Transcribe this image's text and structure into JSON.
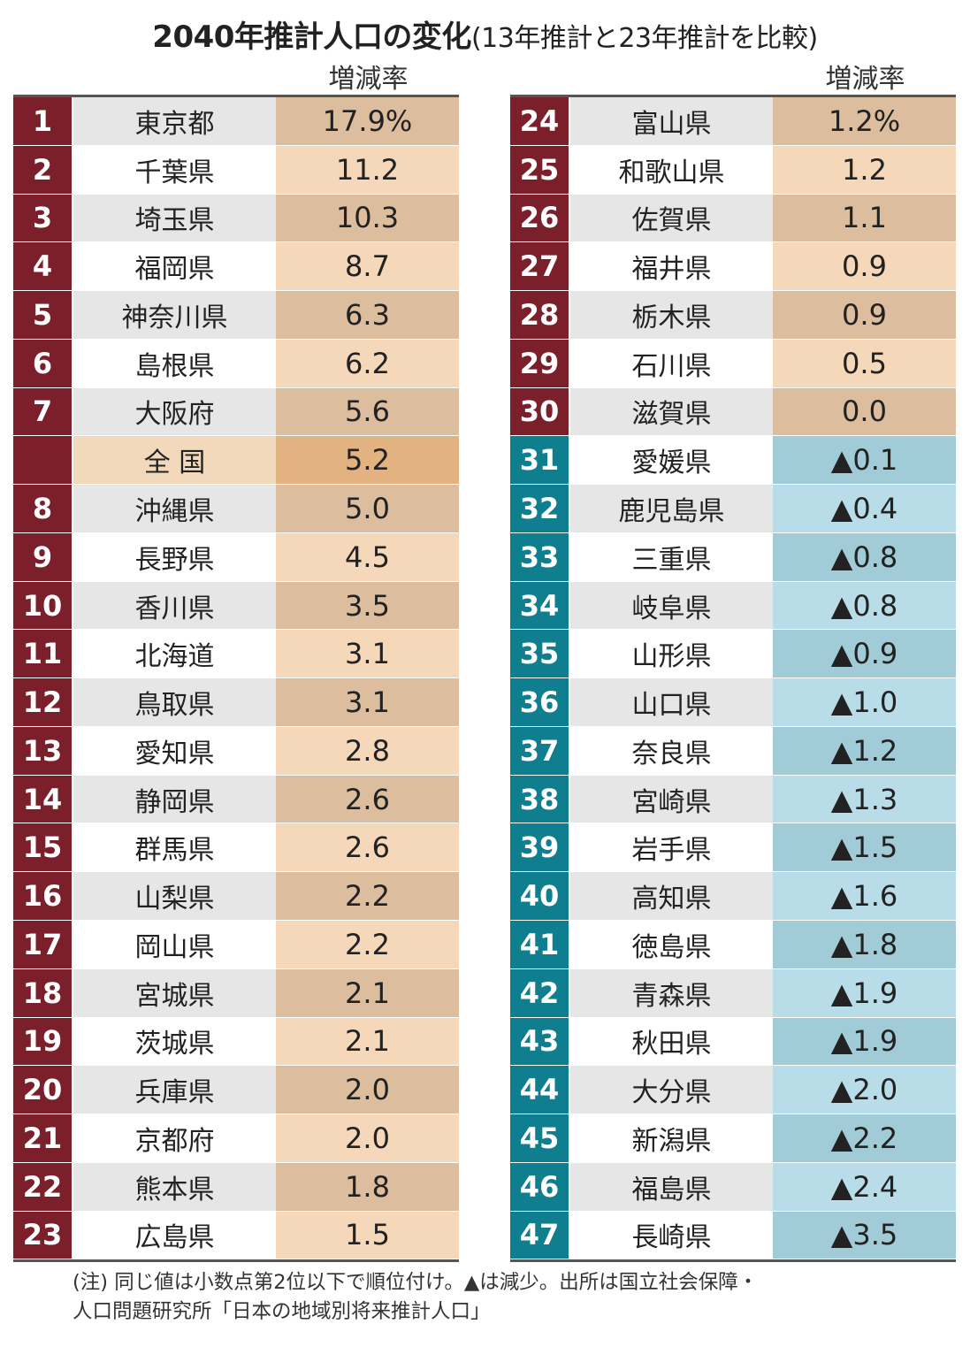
{
  "chart_data": {
    "type": "table",
    "title": "2040年推計人口の変化",
    "subtitle": "(13年推計と23年推計を比較)",
    "column_header": "増減率",
    "unit": "%",
    "left_rows": [
      {
        "rank": "1",
        "name": "東京都",
        "value": "17.9%"
      },
      {
        "rank": "2",
        "name": "千葉県",
        "value": "11.2"
      },
      {
        "rank": "3",
        "name": "埼玉県",
        "value": "10.3"
      },
      {
        "rank": "4",
        "name": "福岡県",
        "value": "8.7"
      },
      {
        "rank": "5",
        "name": "神奈川県",
        "value": "6.3"
      },
      {
        "rank": "6",
        "name": "島根県",
        "value": "6.2"
      },
      {
        "rank": "7",
        "name": "大阪府",
        "value": "5.6"
      },
      {
        "rank": "",
        "name": "全 国",
        "value": "5.2",
        "national": true
      },
      {
        "rank": "8",
        "name": "沖縄県",
        "value": "5.0"
      },
      {
        "rank": "9",
        "name": "長野県",
        "value": "4.5"
      },
      {
        "rank": "10",
        "name": "香川県",
        "value": "3.5"
      },
      {
        "rank": "11",
        "name": "北海道",
        "value": "3.1"
      },
      {
        "rank": "12",
        "name": "鳥取県",
        "value": "3.1"
      },
      {
        "rank": "13",
        "name": "愛知県",
        "value": "2.8"
      },
      {
        "rank": "14",
        "name": "静岡県",
        "value": "2.6"
      },
      {
        "rank": "15",
        "name": "群馬県",
        "value": "2.6"
      },
      {
        "rank": "16",
        "name": "山梨県",
        "value": "2.2"
      },
      {
        "rank": "17",
        "name": "岡山県",
        "value": "2.2"
      },
      {
        "rank": "18",
        "name": "宮城県",
        "value": "2.1"
      },
      {
        "rank": "19",
        "name": "茨城県",
        "value": "2.1"
      },
      {
        "rank": "20",
        "name": "兵庫県",
        "value": "2.0"
      },
      {
        "rank": "21",
        "name": "京都府",
        "value": "2.0"
      },
      {
        "rank": "22",
        "name": "熊本県",
        "value": "1.8"
      },
      {
        "rank": "23",
        "name": "広島県",
        "value": "1.5"
      }
    ],
    "right_rows": [
      {
        "rank": "24",
        "name": "富山県",
        "value": "1.2%"
      },
      {
        "rank": "25",
        "name": "和歌山県",
        "value": "1.2"
      },
      {
        "rank": "26",
        "name": "佐賀県",
        "value": "1.1"
      },
      {
        "rank": "27",
        "name": "福井県",
        "value": "0.9"
      },
      {
        "rank": "28",
        "name": "栃木県",
        "value": "0.9"
      },
      {
        "rank": "29",
        "name": "石川県",
        "value": "0.5"
      },
      {
        "rank": "30",
        "name": "滋賀県",
        "value": "0.0"
      },
      {
        "rank": "31",
        "name": "愛媛県",
        "value": "▲0.1"
      },
      {
        "rank": "32",
        "name": "鹿児島県",
        "value": "▲0.4"
      },
      {
        "rank": "33",
        "name": "三重県",
        "value": "▲0.8"
      },
      {
        "rank": "34",
        "name": "岐阜県",
        "value": "▲0.8"
      },
      {
        "rank": "35",
        "name": "山形県",
        "value": "▲0.9"
      },
      {
        "rank": "36",
        "name": "山口県",
        "value": "▲1.0"
      },
      {
        "rank": "37",
        "name": "奈良県",
        "value": "▲1.2"
      },
      {
        "rank": "38",
        "name": "宮崎県",
        "value": "▲1.3"
      },
      {
        "rank": "39",
        "name": "岩手県",
        "value": "▲1.5"
      },
      {
        "rank": "40",
        "name": "高知県",
        "value": "▲1.6"
      },
      {
        "rank": "41",
        "name": "徳島県",
        "value": "▲1.8"
      },
      {
        "rank": "42",
        "name": "青森県",
        "value": "▲1.9"
      },
      {
        "rank": "43",
        "name": "秋田県",
        "value": "▲1.9"
      },
      {
        "rank": "44",
        "name": "大分県",
        "value": "▲2.0"
      },
      {
        "rank": "45",
        "name": "新潟県",
        "value": "▲2.2"
      },
      {
        "rank": "46",
        "name": "福島県",
        "value": "▲2.4"
      },
      {
        "rank": "47",
        "name": "長崎県",
        "value": "▲3.5"
      }
    ],
    "note": "(注) 同じ値は小数点第2位以下で順位付け。▲は減少。出所は国立社会保障・\n人口問題研究所「日本の地域別将来推計人口」"
  },
  "colors": {
    "rank_increase": "#7b1f2b",
    "rank_decrease": "#0f7f90",
    "name_band": "#e6e6e6",
    "value_increase_light": "#f5d7b9",
    "value_increase_dark": "#dcbd9e",
    "value_national": "#e2b280",
    "name_national": "#f3d9bc",
    "value_decrease_light": "#b9dde8",
    "value_decrease_dark": "#a2cbd8"
  }
}
